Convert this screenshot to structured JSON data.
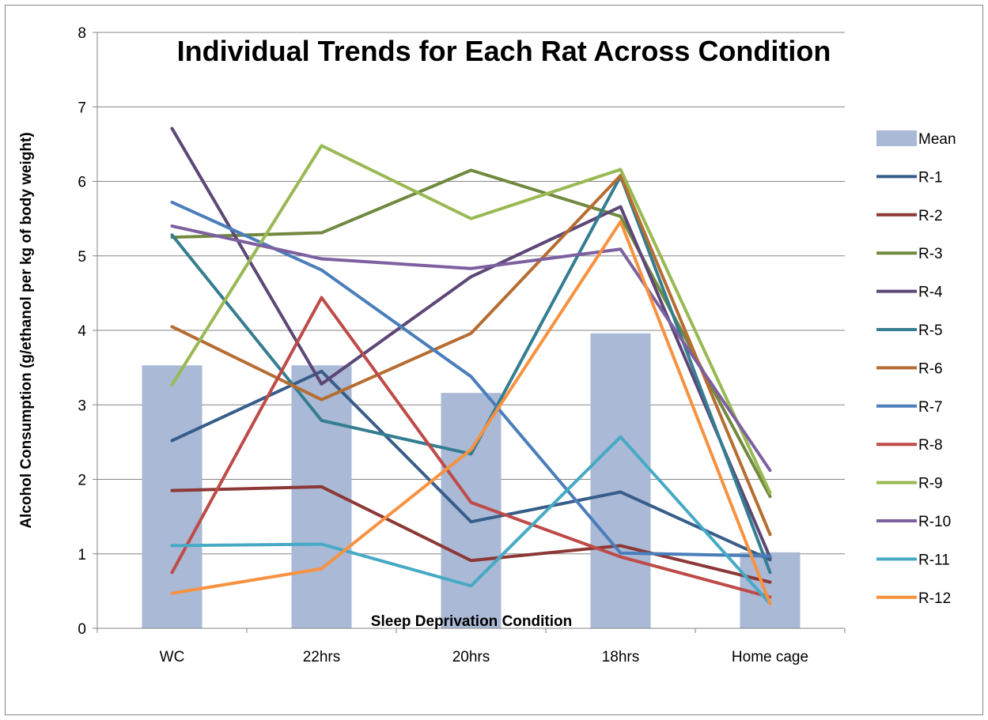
{
  "chart_data": {
    "type": "bar",
    "title": "Individual Trends for Each Rat Across Condition",
    "xlabel": "Sleep Deprivation Condition",
    "ylabel": "Alcohol Consumption (g/ethanol per kg of body weight)",
    "ylim": [
      0,
      8
    ],
    "yticks": [
      "0",
      "1",
      "2",
      "3",
      "4",
      "5",
      "6",
      "7",
      "8"
    ],
    "grid": true,
    "legend_position": "right",
    "categories": [
      "WC",
      "22hrs",
      "20hrs",
      "18hrs",
      "Home cage"
    ],
    "bar_series": {
      "name": "Mean",
      "color": "#a9b9d6",
      "values": [
        3.53,
        3.53,
        3.16,
        3.96,
        1.02
      ]
    },
    "series": [
      {
        "name": "R-1",
        "type": "line",
        "color": "#385d8a",
        "values": [
          2.52,
          3.45,
          1.43,
          1.83,
          0.92
        ]
      },
      {
        "name": "R-2",
        "type": "line",
        "color": "#8c3836",
        "values": [
          1.85,
          1.9,
          0.91,
          1.11,
          0.62
        ]
      },
      {
        "name": "R-3",
        "type": "line",
        "color": "#71893f",
        "values": [
          5.25,
          5.31,
          6.15,
          5.53,
          1.77
        ]
      },
      {
        "name": "R-4",
        "type": "line",
        "color": "#5c4776",
        "values": [
          6.71,
          3.28,
          4.72,
          5.66,
          0.95
        ]
      },
      {
        "name": "R-5",
        "type": "line",
        "color": "#357d91",
        "values": [
          5.28,
          2.79,
          2.34,
          6.07,
          0.75
        ]
      },
      {
        "name": "R-6",
        "type": "line",
        "color": "#b66d31",
        "values": [
          4.05,
          3.07,
          3.96,
          6.08,
          1.26
        ]
      },
      {
        "name": "R-7",
        "type": "line",
        "color": "#4a7ebb",
        "values": [
          5.72,
          4.81,
          3.38,
          1.01,
          0.97
        ]
      },
      {
        "name": "R-8",
        "type": "line",
        "color": "#be4b48",
        "values": [
          0.75,
          4.44,
          1.69,
          0.96,
          0.42
        ]
      },
      {
        "name": "R-9",
        "type": "line",
        "color": "#98b954",
        "values": [
          3.27,
          6.48,
          5.5,
          6.16,
          1.82
        ]
      },
      {
        "name": "R-10",
        "type": "line",
        "color": "#7d60a0",
        "values": [
          5.4,
          4.96,
          4.83,
          5.09,
          2.12
        ]
      },
      {
        "name": "R-11",
        "type": "line",
        "color": "#46aac5",
        "values": [
          1.11,
          1.13,
          0.57,
          2.57,
          0.33
        ]
      },
      {
        "name": "R-12",
        "type": "line",
        "color": "#f69240",
        "values": [
          0.47,
          0.8,
          2.4,
          5.46,
          0.33
        ]
      }
    ]
  }
}
